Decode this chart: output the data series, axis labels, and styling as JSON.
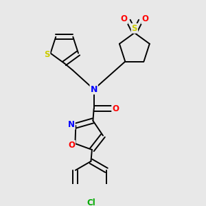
{
  "bg_color": "#e8e8e8",
  "atom_colors": {
    "S": "#cccc00",
    "N": "#0000ff",
    "O": "#ff0000",
    "Cl": "#00aa00",
    "C": "#000000"
  },
  "bond_color": "#000000",
  "lw": 1.4
}
